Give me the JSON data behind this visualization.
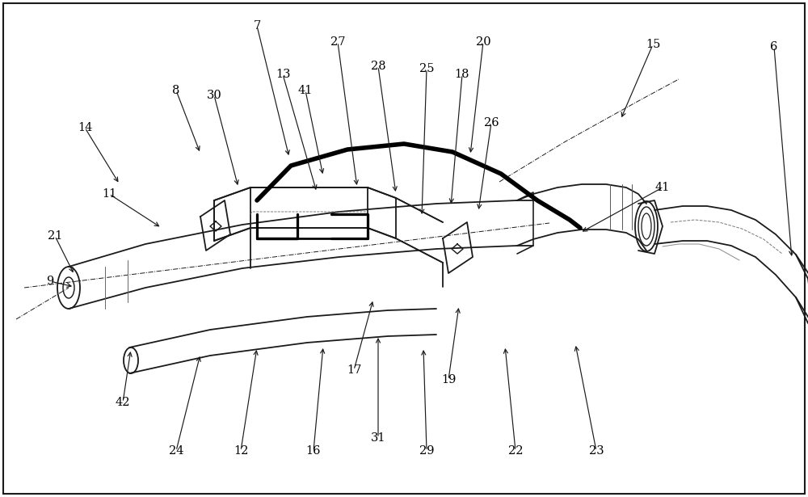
{
  "bg_color": "#ffffff",
  "line_color": "#1a1a1a",
  "thick_line_color": "#000000",
  "label_color": "#000000",
  "fig_width": 10.0,
  "fig_height": 6.15,
  "lw": 1.3,
  "tlw": 3.5,
  "labels": [
    [
      "6",
      958,
      58,
      980,
      320
    ],
    [
      "7",
      318,
      32,
      358,
      195
    ],
    [
      "8",
      218,
      112,
      248,
      190
    ],
    [
      "9",
      62,
      348,
      92,
      355
    ],
    [
      "11",
      135,
      240,
      200,
      282
    ],
    [
      "12",
      298,
      558,
      318,
      430
    ],
    [
      "13",
      350,
      92,
      392,
      238
    ],
    [
      "14",
      105,
      158,
      148,
      228
    ],
    [
      "15",
      808,
      55,
      768,
      148
    ],
    [
      "16",
      388,
      558,
      400,
      428
    ],
    [
      "17",
      438,
      458,
      462,
      370
    ],
    [
      "18",
      572,
      92,
      558,
      255
    ],
    [
      "19",
      555,
      470,
      568,
      378
    ],
    [
      "20",
      598,
      52,
      582,
      192
    ],
    [
      "21",
      68,
      292,
      92,
      340
    ],
    [
      "22",
      638,
      558,
      625,
      428
    ],
    [
      "23",
      738,
      558,
      712,
      425
    ],
    [
      "24",
      218,
      558,
      248,
      438
    ],
    [
      "25",
      528,
      85,
      522,
      268
    ],
    [
      "26",
      608,
      152,
      592,
      262
    ],
    [
      "27",
      418,
      52,
      442,
      232
    ],
    [
      "28",
      468,
      82,
      490,
      240
    ],
    [
      "29",
      528,
      558,
      524,
      430
    ],
    [
      "30",
      265,
      118,
      295,
      232
    ],
    [
      "31",
      468,
      542,
      468,
      415
    ],
    [
      "41",
      378,
      112,
      400,
      218
    ],
    [
      "41",
      820,
      232,
      718,
      288
    ],
    [
      "42",
      152,
      498,
      162,
      432
    ]
  ]
}
